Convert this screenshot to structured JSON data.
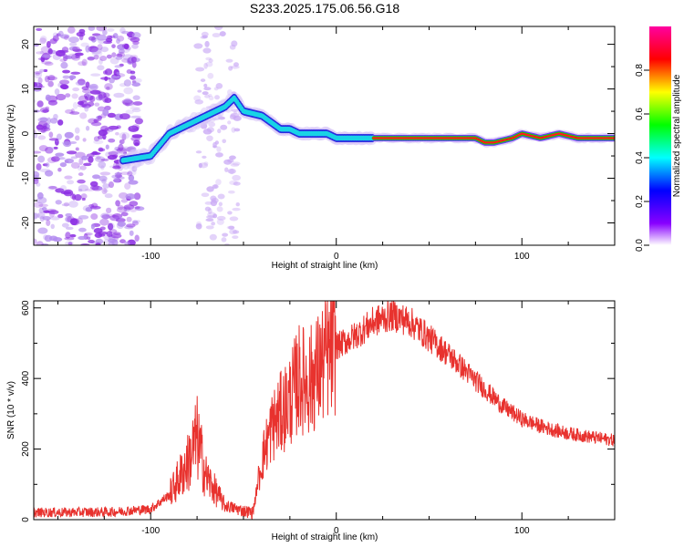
{
  "title": "S233.2025.175.06.56.G18",
  "chart_data": [
    {
      "type": "heatmap",
      "xlabel": "Height of straight line (km)",
      "ylabel": "Frequency (Hz)",
      "xlim": [
        -163,
        150
      ],
      "ylim": [
        -25,
        24
      ],
      "xticks": [
        -100,
        0,
        100
      ],
      "yticks": [
        20,
        10,
        0,
        -10,
        -20
      ],
      "colorbar": {
        "label": "Normalized spectral amplitude",
        "range": [
          0,
          1
        ],
        "ticks": [
          "0.0",
          "0.2",
          "0.4",
          "0.6",
          "0.8"
        ],
        "colors": [
          "#ffffff",
          "#8800ff",
          "#0000ff",
          "#00ffff",
          "#00ff00",
          "#ffff00",
          "#ff0000",
          "#ff00a0"
        ]
      },
      "ridge": {
        "x": [
          -115,
          -100,
          -90,
          -80,
          -70,
          -60,
          -55,
          -50,
          -40,
          -30,
          -25,
          -20,
          -10,
          -5,
          0,
          10,
          20,
          40,
          60,
          75,
          80,
          85,
          95,
          100,
          110,
          120,
          130,
          150
        ],
        "y": [
          -6,
          -5,
          0,
          2,
          4,
          6,
          8,
          5,
          4,
          1,
          1,
          0,
          0,
          0,
          -1,
          -1,
          -1,
          -1,
          -1,
          -1,
          -2,
          -2,
          -1,
          0,
          -1,
          0,
          -1,
          -1
        ]
      }
    },
    {
      "type": "line",
      "xlabel": "Height of straight line (km)",
      "ylabel": "SNR (10 * v/v)",
      "xlim": [
        -163,
        150
      ],
      "ylim": [
        0,
        620
      ],
      "xticks": [
        -100,
        0,
        100
      ],
      "yticks": [
        0,
        200,
        400,
        600
      ],
      "color": "#e8322e",
      "envelope": {
        "x": [
          -163,
          -120,
          -100,
          -90,
          -80,
          -75,
          -70,
          -60,
          -50,
          -45,
          -40,
          -35,
          -30,
          -25,
          -20,
          -15,
          -10,
          -5,
          0,
          10,
          20,
          30,
          40,
          50,
          60,
          70,
          80,
          90,
          100,
          110,
          120,
          130,
          140,
          150
        ],
        "y": [
          20,
          22,
          30,
          70,
          160,
          230,
          120,
          40,
          25,
          20,
          170,
          260,
          300,
          340,
          400,
          390,
          420,
          460,
          490,
          520,
          560,
          580,
          560,
          515,
          470,
          420,
          370,
          320,
          285,
          265,
          250,
          240,
          232,
          225
        ]
      }
    }
  ]
}
